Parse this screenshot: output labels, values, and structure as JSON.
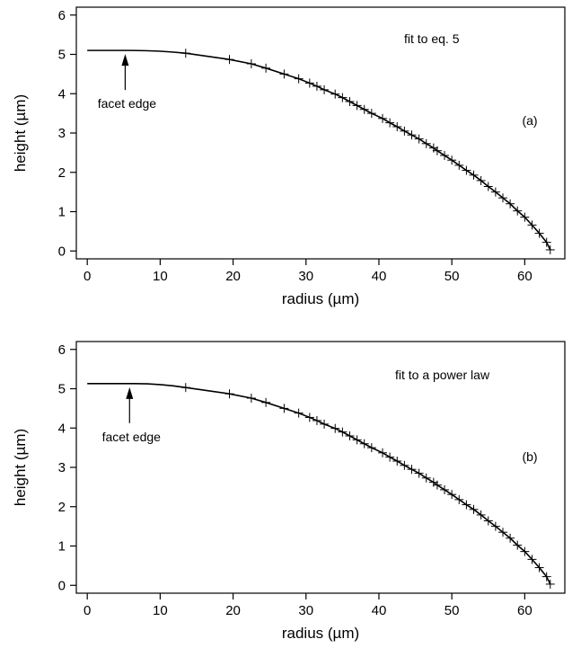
{
  "chart_data": [
    {
      "type": "scatter",
      "panel_label": "(a)",
      "annotation": "fit to eq. 5",
      "arrow_label": "facet edge",
      "arrow_x": 5.2,
      "xlabel": "radius (µm)",
      "ylabel": "height (µm)",
      "xlim": [
        -1.5,
        65.5
      ],
      "ylim": [
        -0.2,
        6.2
      ],
      "xticks": [
        0,
        10,
        20,
        30,
        40,
        50,
        60
      ],
      "yticks": [
        0,
        1,
        2,
        3,
        4,
        5,
        6
      ],
      "facet_radius": 6.0,
      "facet_height": 5.1,
      "series": [
        {
          "x": [
            13.5,
            19.5,
            22.5,
            24.5,
            27.0,
            29.0,
            30.5,
            31.5,
            32.5,
            34.0,
            35.0,
            36.0,
            37.0,
            38.0,
            39.0,
            40.5,
            41.5,
            42.5,
            43.5,
            44.5,
            45.5,
            46.5,
            47.5,
            48.0,
            49.0,
            50.0,
            51.0,
            52.0,
            53.0,
            54.0,
            55.0,
            56.0,
            57.0,
            58.0,
            59.0,
            60.0,
            61.0,
            62.0,
            63.0,
            63.5
          ],
          "y": [
            5.03,
            4.87,
            4.76,
            4.65,
            4.5,
            4.38,
            4.27,
            4.19,
            4.1,
            3.99,
            3.9,
            3.8,
            3.7,
            3.6,
            3.5,
            3.37,
            3.26,
            3.16,
            3.05,
            2.95,
            2.85,
            2.73,
            2.62,
            2.55,
            2.43,
            2.31,
            2.18,
            2.05,
            1.93,
            1.79,
            1.64,
            1.5,
            1.35,
            1.2,
            1.02,
            0.86,
            0.66,
            0.45,
            0.22,
            0.03
          ]
        }
      ]
    },
    {
      "type": "scatter",
      "panel_label": "(b)",
      "annotation": "fit to a power law",
      "arrow_label": "facet edge",
      "arrow_x": 5.8,
      "xlabel": "radius (µm)",
      "ylabel": "height (µm)",
      "xlim": [
        -1.5,
        65.5
      ],
      "ylim": [
        -0.2,
        6.2
      ],
      "xticks": [
        0,
        10,
        20,
        30,
        40,
        50,
        60
      ],
      "yticks": [
        0,
        1,
        2,
        3,
        4,
        5,
        6
      ],
      "facet_radius": 6.5,
      "facet_height": 5.13,
      "series": [
        {
          "x": [
            13.5,
            19.5,
            22.5,
            24.5,
            27.0,
            29.0,
            30.5,
            31.5,
            32.5,
            34.0,
            35.0,
            36.0,
            37.0,
            38.0,
            39.0,
            40.5,
            41.5,
            42.5,
            43.5,
            44.5,
            45.5,
            46.5,
            47.5,
            48.0,
            49.0,
            50.0,
            51.0,
            52.0,
            53.0,
            54.0,
            55.0,
            56.0,
            57.0,
            58.0,
            59.0,
            60.0,
            61.0,
            62.0,
            63.0,
            63.5
          ],
          "y": [
            5.03,
            4.87,
            4.76,
            4.65,
            4.5,
            4.38,
            4.27,
            4.19,
            4.1,
            3.99,
            3.9,
            3.8,
            3.7,
            3.6,
            3.5,
            3.37,
            3.26,
            3.16,
            3.05,
            2.95,
            2.85,
            2.73,
            2.62,
            2.55,
            2.43,
            2.31,
            2.18,
            2.05,
            1.93,
            1.79,
            1.64,
            1.5,
            1.35,
            1.2,
            1.02,
            0.86,
            0.66,
            0.45,
            0.22,
            0.03
          ]
        }
      ]
    }
  ]
}
